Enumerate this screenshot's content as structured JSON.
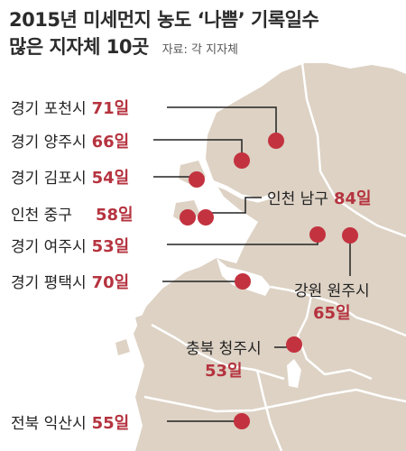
{
  "header": {
    "title_line1": "2015년 미세먼지 농도 ‘나쁨’ 기록일수",
    "title_line2": "많은 지자체 10곳",
    "source": "자료: 각 지자체"
  },
  "colors": {
    "map_fill": "#ddd2c4",
    "water": "#ffffff",
    "border": "#ffffff",
    "marker": "#c3323f",
    "value_text": "#b5333f",
    "leader_line": "#222222"
  },
  "places": [
    {
      "name": "경기 포천시",
      "value": "71일"
    },
    {
      "name": "경기 양주시",
      "value": "66일"
    },
    {
      "name": "경기 김포시",
      "value": "54일"
    },
    {
      "name": "인천 중구",
      "value": "58일"
    },
    {
      "name": "인천 남구",
      "value": "84일"
    },
    {
      "name": "경기 여주시",
      "value": "53일"
    },
    {
      "name": "강원 원주시",
      "value": "65일"
    },
    {
      "name": "경기 평택시",
      "value": "70일"
    },
    {
      "name": "충북 청주시",
      "value": "53일"
    },
    {
      "name": "전북 익산시",
      "value": "55일"
    }
  ]
}
